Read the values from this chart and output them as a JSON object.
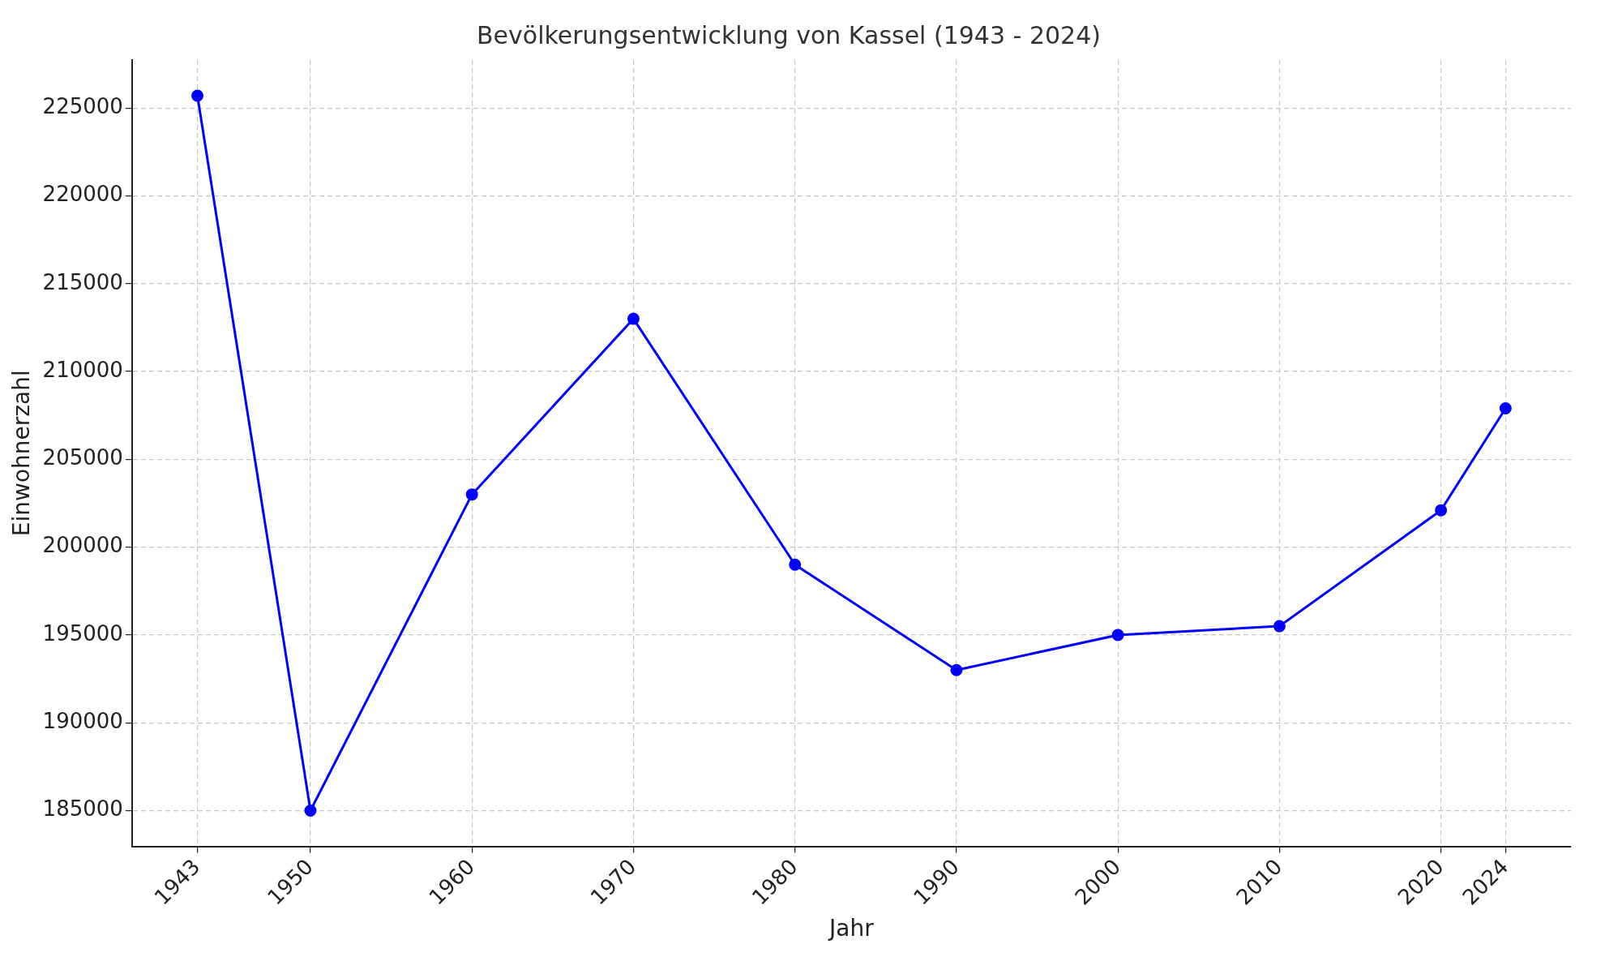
{
  "chart_data": {
    "type": "line",
    "title": "Bevölkerungsentwicklung von Kassel (1943 - 2024)",
    "xlabel": "Jahr",
    "ylabel": "Einwohnerzahl",
    "x": [
      1943,
      1950,
      1960,
      1970,
      1980,
      1990,
      2000,
      2010,
      2020,
      2024
    ],
    "series": [
      {
        "color": "#0000ff",
        "values": [
          225700,
          185000,
          203000,
          213000,
          199000,
          193000,
          195000,
          195500,
          202100,
          207900
        ]
      }
    ],
    "xlim": [
      1938.95,
      2028.05
    ],
    "xticks": [
      1943,
      1950,
      1960,
      1970,
      1980,
      1990,
      2000,
      2010,
      2020,
      2024
    ],
    "ylim": [
      182965,
      227735
    ],
    "yticks": [
      185000,
      190000,
      195000,
      200000,
      205000,
      210000,
      215000,
      220000,
      225000
    ],
    "grid": true,
    "legend": false,
    "marker": "circle",
    "line_style": "solid"
  }
}
